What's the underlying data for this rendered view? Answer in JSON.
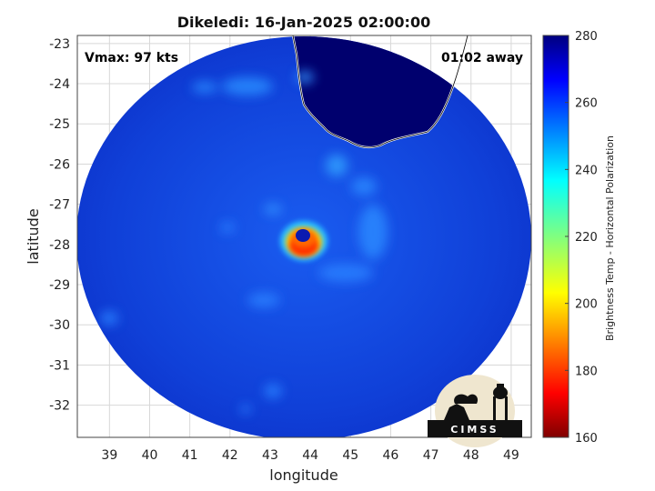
{
  "title": "Dikeledi: 16-Jan-2025 02:00:00",
  "annotations": {
    "vmax": "Vmax: 97 kts",
    "time_away": "01:02 away"
  },
  "axes": {
    "xlabel": "longitude",
    "ylabel": "latitude",
    "x_ticks": [
      39,
      40,
      41,
      42,
      43,
      44,
      45,
      46,
      47,
      48,
      49
    ],
    "y_ticks": [
      -23,
      -24,
      -25,
      -26,
      -27,
      -28,
      -29,
      -30,
      -31,
      -32
    ],
    "xlim": [
      38.2,
      49.5
    ],
    "ylim": [
      -32.8,
      -22.8
    ],
    "grid": true
  },
  "colorbar": {
    "label": "Brightness Temp - Horizontal Polarization",
    "ticks": [
      280,
      260,
      240,
      220,
      200,
      180,
      160
    ],
    "range": [
      160,
      280
    ],
    "colormap": "jet"
  },
  "storm_center": {
    "lon": 43.75,
    "lat": -27.85
  },
  "logo": {
    "text": "CIMSS"
  },
  "colors": {
    "land": "#00006e",
    "background_field": "#1040d8",
    "coastline": "#ffffff"
  }
}
